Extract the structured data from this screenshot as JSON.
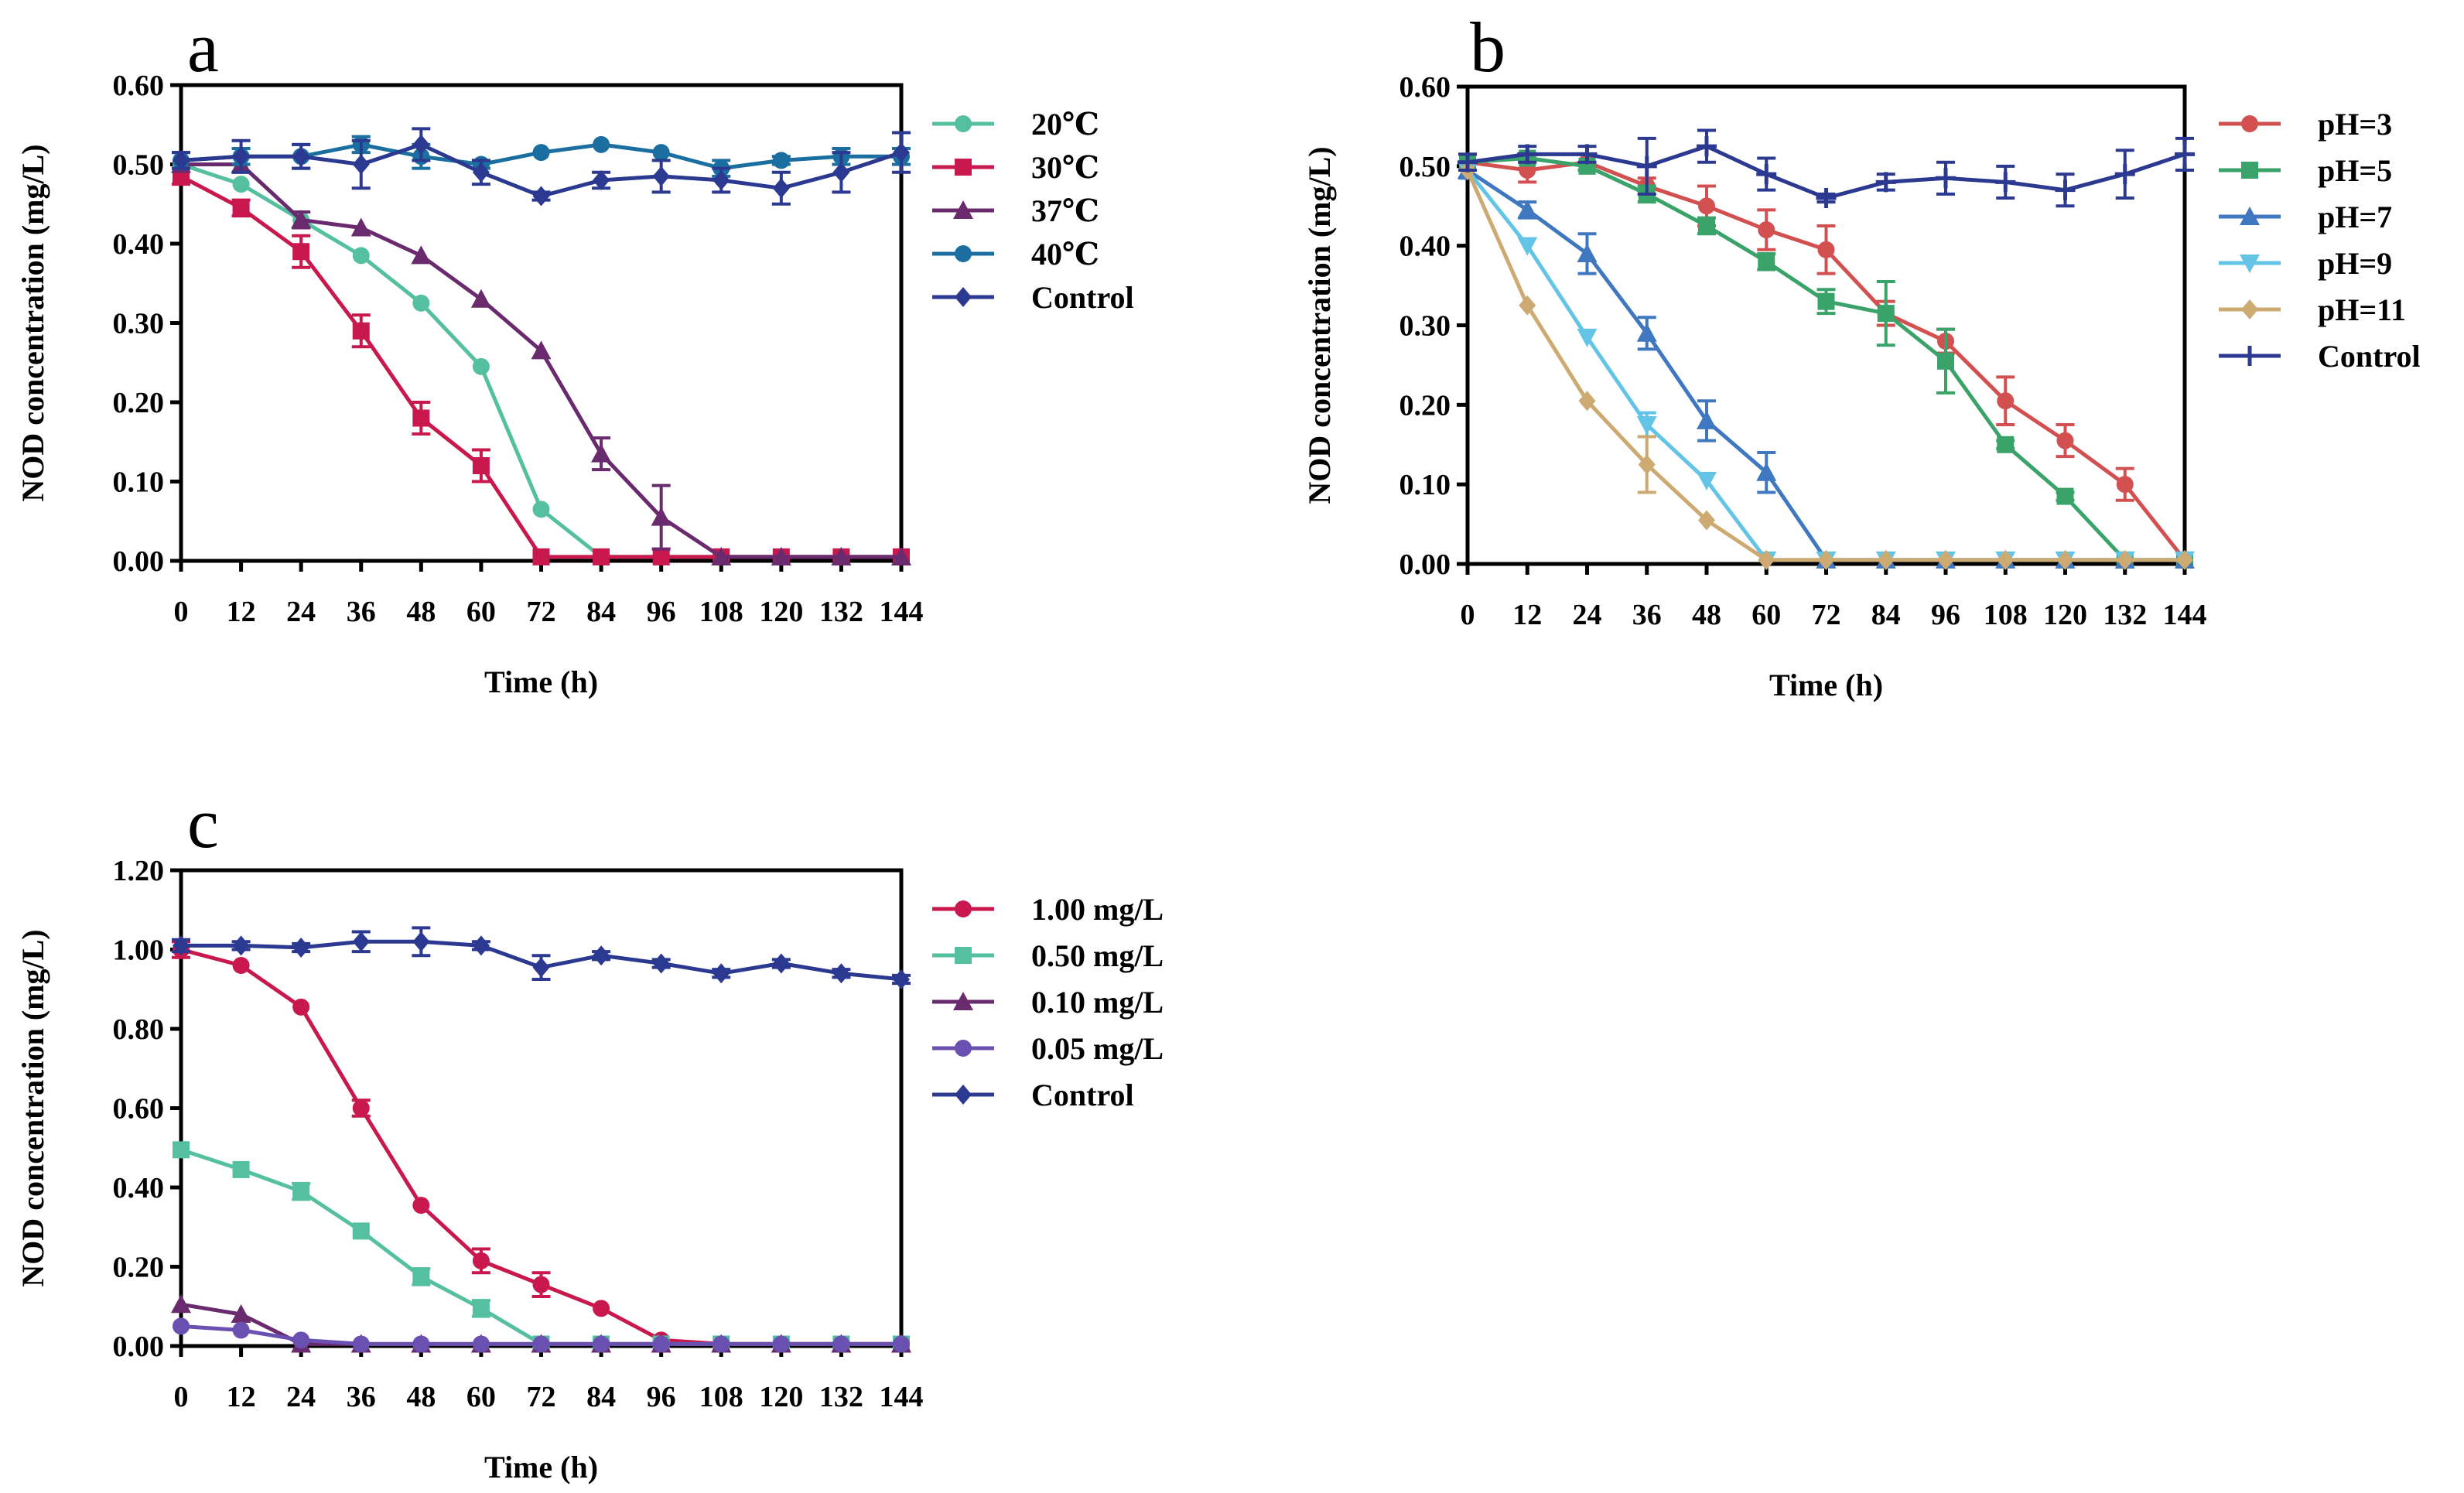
{
  "figure": {
    "colors": {
      "c20": "#55c0a0",
      "c30": "#c8184e",
      "c37": "#6a2a6e",
      "c40": "#1b6fa0",
      "control": "#2b3990",
      "ph3": "#d25050",
      "ph5": "#3aa36a",
      "ph7": "#3f78c0",
      "ph9": "#63c4e6",
      "ph11": "#ccaa72",
      "m100": "#c8184e",
      "m050": "#55c0a0",
      "m010": "#6a2a6e",
      "m005": "#6a50b0"
    }
  },
  "chart_data": [
    {
      "panel": "a",
      "type": "line",
      "xlabel": "Time (h)",
      "ylabel": "NOD concentration (mg/L)",
      "xlim": [
        0,
        144
      ],
      "ylim": [
        0,
        0.6
      ],
      "xticks": [
        0,
        12,
        24,
        36,
        48,
        60,
        72,
        84,
        96,
        108,
        120,
        132,
        144
      ],
      "xtick_labels": [
        "0",
        "12",
        "24",
        "36",
        "48",
        "60",
        "72",
        "84",
        "96",
        "108",
        "120",
        "132",
        "144"
      ],
      "yticks": [
        0,
        0.1,
        0.2,
        0.3,
        0.4,
        0.5,
        0.6
      ],
      "ytick_labels": [
        "0.00",
        "0.10",
        "0.20",
        "0.30",
        "0.40",
        "0.50",
        "0.60"
      ],
      "x": [
        0,
        12,
        24,
        36,
        48,
        60,
        72,
        84,
        96,
        108,
        120,
        132,
        144
      ],
      "series": [
        {
          "name": "20℃",
          "color": "#55c0a0",
          "marker": "circle",
          "values": [
            0.5,
            0.475,
            0.43,
            0.385,
            0.325,
            0.245,
            0.065,
            0.005,
            0.005,
            0.005,
            0.005,
            0.005,
            0.005
          ],
          "errors": [
            0,
            0,
            0.01,
            0,
            0,
            0,
            0,
            0,
            0,
            0,
            0,
            0,
            0
          ]
        },
        {
          "name": "30℃",
          "color": "#c8184e",
          "marker": "square",
          "values": [
            0.485,
            0.445,
            0.39,
            0.29,
            0.18,
            0.12,
            0.005,
            0.005,
            0.005,
            0.005,
            0.005,
            0.005,
            0.005
          ],
          "errors": [
            0.01,
            0.01,
            0.02,
            0.02,
            0.02,
            0.02,
            0,
            0,
            0,
            0,
            0,
            0,
            0
          ]
        },
        {
          "name": "37℃",
          "color": "#6a2a6e",
          "marker": "triangle",
          "values": [
            0.5,
            0.5,
            0.43,
            0.42,
            0.385,
            0.33,
            0.265,
            0.135,
            0.055,
            0.005,
            0.005,
            0.005,
            0.005
          ],
          "errors": [
            0,
            0.01,
            0.01,
            0,
            0,
            0,
            0,
            0.02,
            0.04,
            0,
            0,
            0,
            0
          ]
        },
        {
          "name": "40℃",
          "color": "#1b6fa0",
          "marker": "circle",
          "values": [
            0.505,
            0.51,
            0.51,
            0.525,
            0.51,
            0.5,
            0.515,
            0.525,
            0.515,
            0.495,
            0.505,
            0.51,
            0.51
          ],
          "errors": [
            0.01,
            0.01,
            0.015,
            0.01,
            0.015,
            0.005,
            0,
            0,
            0,
            0.01,
            0.005,
            0.01,
            0.01
          ]
        },
        {
          "name": "Control",
          "color": "#2b3990",
          "marker": "diamond",
          "values": [
            0.505,
            0.51,
            0.51,
            0.5,
            0.525,
            0.49,
            0.46,
            0.48,
            0.485,
            0.48,
            0.47,
            0.49,
            0.515
          ],
          "errors": [
            0.01,
            0.02,
            0.015,
            0.03,
            0.02,
            0.015,
            0.005,
            0.01,
            0.02,
            0.015,
            0.02,
            0.025,
            0.025
          ]
        }
      ]
    },
    {
      "panel": "b",
      "type": "line",
      "xlabel": "Time (h)",
      "ylabel": "NOD concentration (mg/L)",
      "xlim": [
        0,
        144
      ],
      "ylim": [
        0,
        0.6
      ],
      "xticks": [
        0,
        12,
        24,
        36,
        48,
        60,
        72,
        84,
        96,
        108,
        120,
        132,
        144
      ],
      "xtick_labels": [
        "0",
        "12",
        "24",
        "36",
        "48",
        "60",
        "72",
        "84",
        "96",
        "108",
        "120",
        "132",
        "144"
      ],
      "yticks": [
        0,
        0.1,
        0.2,
        0.3,
        0.4,
        0.5,
        0.6
      ],
      "ytick_labels": [
        "0.00",
        "0.10",
        "0.20",
        "0.30",
        "0.40",
        "0.50",
        "0.60"
      ],
      "x": [
        0,
        12,
        24,
        36,
        48,
        60,
        72,
        84,
        96,
        108,
        120,
        132,
        144
      ],
      "series": [
        {
          "name": "pH=3",
          "color": "#d25050",
          "marker": "circle",
          "values": [
            0.505,
            0.495,
            0.505,
            0.475,
            0.45,
            0.42,
            0.395,
            0.315,
            0.28,
            0.205,
            0.155,
            0.1,
            0.005
          ],
          "errors": [
            0.01,
            0.015,
            0.01,
            0.01,
            0.025,
            0.025,
            0.03,
            0.015,
            0.015,
            0.03,
            0.02,
            0.02,
            0
          ]
        },
        {
          "name": "pH=5",
          "color": "#3aa36a",
          "marker": "square",
          "values": [
            0.505,
            0.51,
            0.5,
            0.465,
            0.425,
            0.38,
            0.33,
            0.315,
            0.255,
            0.15,
            0.085,
            0.005,
            0.005
          ],
          "errors": [
            0.01,
            0.005,
            0.005,
            0.01,
            0.01,
            0.01,
            0.015,
            0.04,
            0.04,
            0.005,
            0.005,
            0,
            0
          ]
        },
        {
          "name": "pH=7",
          "color": "#3f78c0",
          "marker": "triangle",
          "values": [
            0.495,
            0.445,
            0.39,
            0.29,
            0.18,
            0.115,
            0.005,
            0.005,
            0.005,
            0.005,
            0.005,
            0.005,
            0.005
          ],
          "errors": [
            0.01,
            0.01,
            0.025,
            0.02,
            0.025,
            0.025,
            0,
            0,
            0,
            0,
            0,
            0,
            0
          ]
        },
        {
          "name": "pH=9",
          "color": "#63c4e6",
          "marker": "triangle-down",
          "values": [
            0.495,
            0.4,
            0.285,
            0.175,
            0.105,
            0.005,
            0.005,
            0.005,
            0.005,
            0.005,
            0.005,
            0.005,
            0.005
          ],
          "errors": [
            0,
            0,
            0,
            0.015,
            0,
            0,
            0,
            0,
            0,
            0,
            0,
            0,
            0
          ]
        },
        {
          "name": "pH=11",
          "color": "#ccaa72",
          "marker": "diamond",
          "values": [
            0.495,
            0.325,
            0.205,
            0.125,
            0.055,
            0.005,
            0.005,
            0.005,
            0.005,
            0.005,
            0.005,
            0.005,
            0.005
          ],
          "errors": [
            0,
            0,
            0,
            0.035,
            0,
            0,
            0,
            0,
            0,
            0,
            0,
            0,
            0
          ]
        },
        {
          "name": "Control",
          "color": "#2b3990",
          "marker": "cross",
          "values": [
            0.505,
            0.515,
            0.515,
            0.5,
            0.525,
            0.49,
            0.46,
            0.48,
            0.485,
            0.48,
            0.47,
            0.49,
            0.515
          ],
          "errors": [
            0.01,
            0.01,
            0.01,
            0.035,
            0.02,
            0.02,
            0.005,
            0.01,
            0.02,
            0.02,
            0.02,
            0.03,
            0.02
          ]
        }
      ]
    },
    {
      "panel": "c",
      "type": "line",
      "xlabel": "Time (h)",
      "ylabel": "NOD concentration (mg/L)",
      "xlim": [
        0,
        144
      ],
      "ylim": [
        0,
        1.2
      ],
      "xticks": [
        0,
        12,
        24,
        36,
        48,
        60,
        72,
        84,
        96,
        108,
        120,
        132,
        144
      ],
      "xtick_labels": [
        "0",
        "12",
        "24",
        "36",
        "48",
        "60",
        "72",
        "84",
        "96",
        "108",
        "120",
        "132",
        "144"
      ],
      "yticks": [
        0,
        0.2,
        0.4,
        0.6,
        0.8,
        1.0,
        1.2
      ],
      "ytick_labels": [
        "0.00",
        "0.20",
        "0.40",
        "0.60",
        "0.80",
        "1.00",
        "1.20"
      ],
      "x": [
        0,
        12,
        24,
        36,
        48,
        60,
        72,
        84,
        96,
        108,
        120,
        132,
        144
      ],
      "series": [
        {
          "name": "1.00 mg/L",
          "color": "#c8184e",
          "marker": "circle",
          "values": [
            1.0,
            0.96,
            0.855,
            0.6,
            0.355,
            0.215,
            0.155,
            0.095,
            0.015,
            0.005,
            0.005,
            0.005,
            0.005
          ],
          "errors": [
            0.02,
            0,
            0,
            0.02,
            0,
            0.03,
            0.03,
            0,
            0,
            0,
            0,
            0,
            0
          ]
        },
        {
          "name": "0.50 mg/L",
          "color": "#55c0a0",
          "marker": "square",
          "values": [
            0.495,
            0.445,
            0.39,
            0.29,
            0.175,
            0.095,
            0.005,
            0.005,
            0.005,
            0.005,
            0.005,
            0.005,
            0.005
          ],
          "errors": [
            0,
            0,
            0.02,
            0,
            0.02,
            0.02,
            0,
            0,
            0,
            0,
            0,
            0,
            0
          ]
        },
        {
          "name": "0.10 mg/L",
          "color": "#6a2a6e",
          "marker": "triangle",
          "values": [
            0.105,
            0.08,
            0.005,
            0.005,
            0.005,
            0.005,
            0.005,
            0.005,
            0.005,
            0.005,
            0.005,
            0.005,
            0.005
          ],
          "errors": [
            0,
            0,
            0,
            0,
            0,
            0,
            0,
            0,
            0,
            0,
            0,
            0,
            0
          ]
        },
        {
          "name": "0.05 mg/L",
          "color": "#6a50b0",
          "marker": "circle",
          "values": [
            0.05,
            0.04,
            0.015,
            0.005,
            0.005,
            0.005,
            0.005,
            0.005,
            0.005,
            0.005,
            0.005,
            0.005,
            0.005
          ],
          "errors": [
            0,
            0,
            0,
            0,
            0,
            0,
            0,
            0,
            0,
            0,
            0,
            0,
            0
          ]
        },
        {
          "name": "Control",
          "color": "#2b3990",
          "marker": "diamond",
          "values": [
            1.01,
            1.01,
            1.005,
            1.02,
            1.02,
            1.01,
            0.955,
            0.985,
            0.965,
            0.94,
            0.965,
            0.94,
            0.925
          ],
          "errors": [
            0.015,
            0.01,
            0.01,
            0.025,
            0.035,
            0.01,
            0.03,
            0.01,
            0.01,
            0.01,
            0.01,
            0.01,
            0.01
          ]
        }
      ]
    }
  ]
}
